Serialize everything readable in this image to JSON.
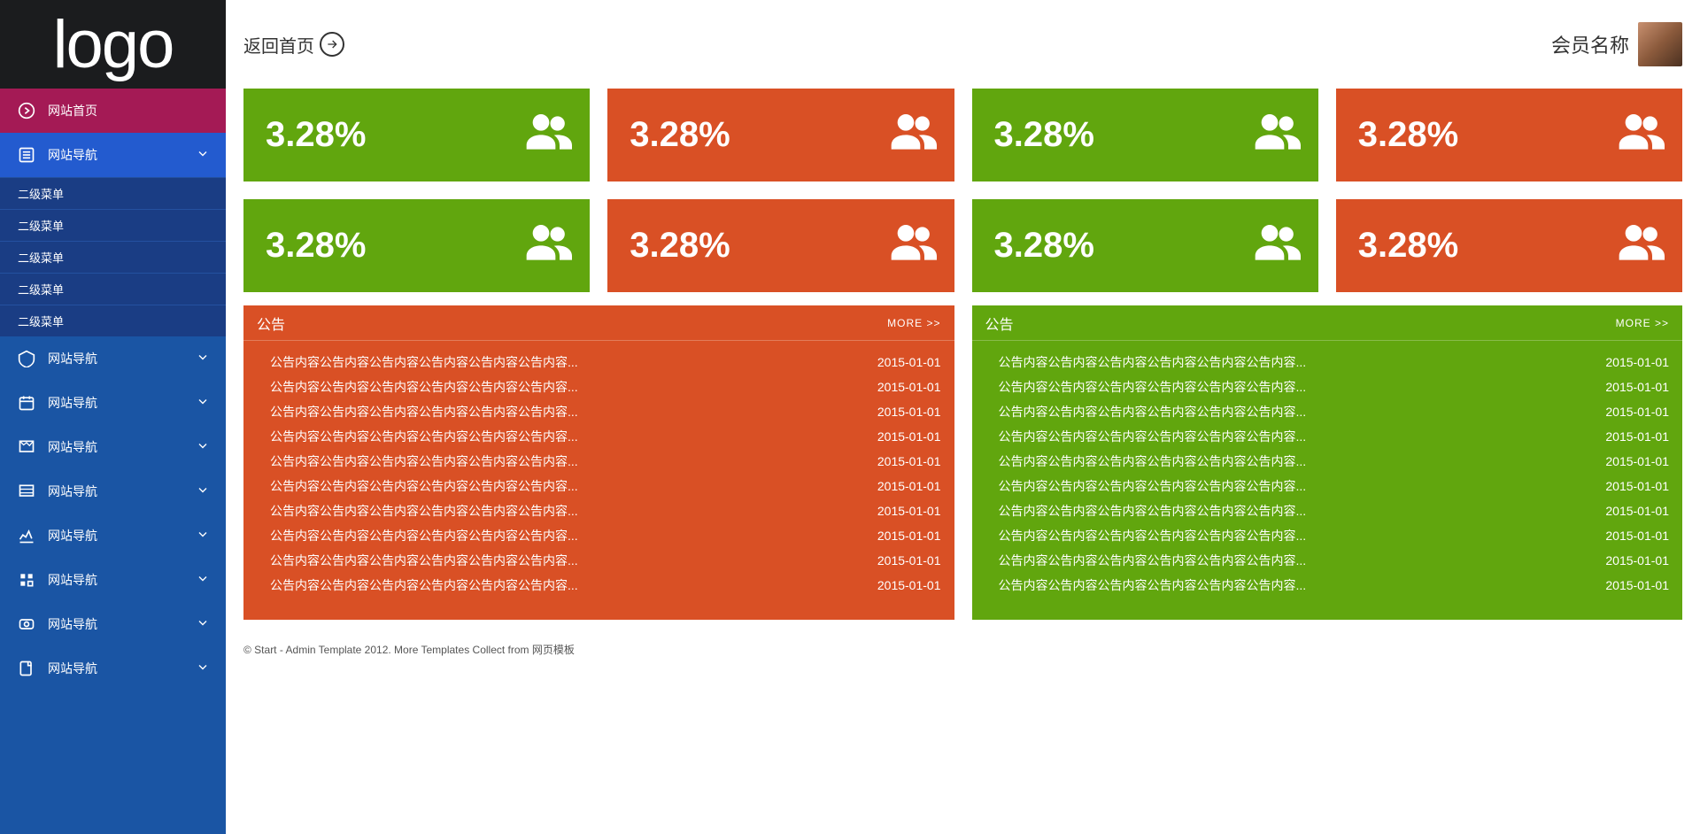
{
  "logo": "logo",
  "topbar": {
    "back_label": "返回首页",
    "user_name": "会员名称"
  },
  "colors": {
    "sidebar_bg": "#1a55a4",
    "logo_bg": "#1b1c1e",
    "home_bg": "#a41a55",
    "expanded_bg": "#235bcf",
    "sub_bg": "#1a3d84",
    "green": "#61a60e",
    "orange": "#d95025",
    "text_white": "#ffffff"
  },
  "sidebar": {
    "home_label": "网站首页",
    "nav_label": "网站导航",
    "sub_label": "二级菜单",
    "sub_count": 5,
    "other_count": 8
  },
  "tiles": {
    "value": "3.28%",
    "row1_colors": [
      "green",
      "orange",
      "green",
      "orange"
    ],
    "row2_colors": [
      "green",
      "orange",
      "green",
      "orange"
    ]
  },
  "panels": {
    "title": "公告",
    "more_label": "MORE >>",
    "item_text": "公告内容公告内容公告内容公告内容公告内容公告内容...",
    "item_date": "2015-01-01",
    "item_count": 10,
    "left_color": "orange",
    "right_color": "green"
  },
  "footer": "© Start - Admin Template 2012. More Templates Collect from 网页模板"
}
